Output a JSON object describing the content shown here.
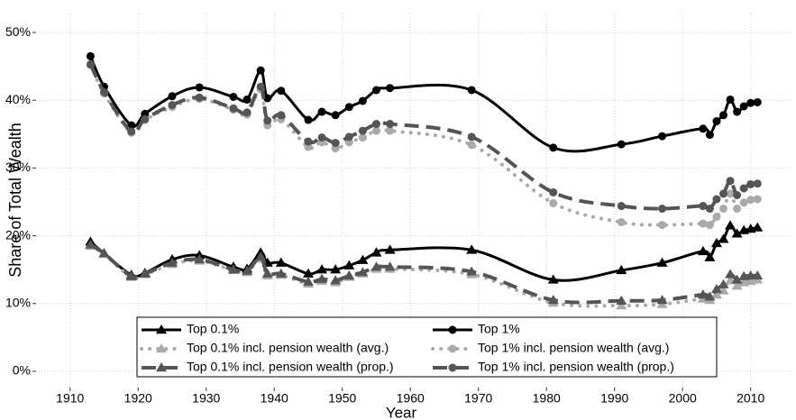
{
  "chart_data": {
    "type": "line",
    "x_label": "Year",
    "y_label": "Share of Total Wealth",
    "x": [
      1913,
      1915,
      1919,
      1921,
      1925,
      1929,
      1934,
      1936,
      1938,
      1939,
      1941,
      1945,
      1947,
      1949,
      1951,
      1953,
      1955,
      1957,
      1969,
      1981,
      1991,
      1997,
      2003,
      2004,
      2005,
      2006,
      2007,
      2008,
      2009,
      2010,
      2011
    ],
    "xlim": [
      1905,
      2016
    ],
    "xticks": [
      1910,
      1920,
      1930,
      1940,
      1950,
      1960,
      1970,
      1980,
      1990,
      2000,
      2010
    ],
    "ylim": [
      -2.4,
      52.8
    ],
    "yticks": [
      {
        "value": 0,
        "label": "0%"
      },
      {
        "value": 10,
        "label": "10%"
      },
      {
        "value": 20,
        "label": "20%"
      },
      {
        "value": 30,
        "label": "30%"
      },
      {
        "value": 40,
        "label": "40%"
      },
      {
        "value": 50,
        "label": "50%"
      }
    ],
    "grid": true,
    "smooth": true,
    "series": [
      {
        "name": "Top 0.1%",
        "color": "#000000",
        "marker": "triangle",
        "line": "solid",
        "values": [
          19.1,
          17.4,
          14.2,
          14.5,
          16.5,
          17.1,
          15.4,
          15.1,
          17.5,
          16,
          16,
          14.4,
          15,
          15,
          15.6,
          16.4,
          17.5,
          17.9,
          17.9,
          13.5,
          14.9,
          16,
          17.7,
          16.8,
          18.9,
          19.5,
          21.5,
          20.3,
          20.8,
          21,
          21.2
        ]
      },
      {
        "name": "Top 1%",
        "color": "#000000",
        "marker": "circle",
        "line": "solid",
        "values": [
          46.5,
          42,
          36.3,
          38,
          40.6,
          41.9,
          40.5,
          40.1,
          44.4,
          40.3,
          41.4,
          37.1,
          38.3,
          37.8,
          39,
          39.9,
          41.5,
          41.8,
          41.5,
          33,
          33.5,
          34.7,
          35.8,
          34.9,
          36.9,
          37.8,
          40.1,
          38.3,
          39.1,
          39.6,
          39.7
        ]
      },
      {
        "name": "Top 0.1% incl. pension wealth (avg.)",
        "color": "#aaaaaa",
        "marker": "triangle",
        "line": "dotted",
        "values": [
          18.5,
          17.3,
          13.9,
          14.3,
          15.8,
          16.3,
          14.9,
          14.6,
          16.6,
          14.1,
          14.2,
          12.9,
          13.3,
          13.1,
          13.9,
          14.4,
          15.1,
          15.1,
          14.3,
          10.1,
          9.7,
          9.9,
          10.7,
          10.5,
          11.3,
          11.9,
          13.4,
          12.6,
          13.1,
          13.3,
          13.5
        ]
      },
      {
        "name": "Top 1% incl. pension wealth (avg.)",
        "color": "#aaaaaa",
        "marker": "circle",
        "line": "dotted",
        "values": [
          45.2,
          41,
          35.2,
          37.1,
          39,
          40.2,
          38.6,
          37.9,
          41.6,
          36.3,
          37.2,
          33.1,
          33.8,
          32.9,
          33.8,
          34.5,
          35.5,
          35.5,
          33.4,
          24.8,
          22,
          21.6,
          21.8,
          21.6,
          22.8,
          24,
          26.2,
          24,
          24.9,
          25.3,
          25.4
        ]
      },
      {
        "name": "Top 0.1% incl. pension wealth (prop.)",
        "color": "#555555",
        "marker": "triangle",
        "line": "dashed",
        "values": [
          18.7,
          17.4,
          14,
          14.4,
          16,
          16.5,
          15,
          14.8,
          16.9,
          14.4,
          14.4,
          13.2,
          13.6,
          13.4,
          14.1,
          14.6,
          15.4,
          15.4,
          14.7,
          10.5,
          10.4,
          10.5,
          11.3,
          11,
          12.1,
          12.8,
          14.3,
          13.5,
          14,
          14.1,
          14.1
        ]
      },
      {
        "name": "Top 1% incl. pension wealth (prop.)",
        "color": "#555555",
        "marker": "circle",
        "line": "dashed",
        "values": [
          45.3,
          41.2,
          35.4,
          37.2,
          39.3,
          40.4,
          38.8,
          38.2,
          42,
          37,
          37.8,
          33.9,
          34.5,
          33.7,
          34.6,
          35.5,
          36.5,
          36.5,
          34.6,
          26.4,
          24.4,
          24,
          24.4,
          24,
          25.4,
          26.2,
          28.1,
          26,
          27,
          27.6,
          27.7
        ]
      }
    ]
  }
}
